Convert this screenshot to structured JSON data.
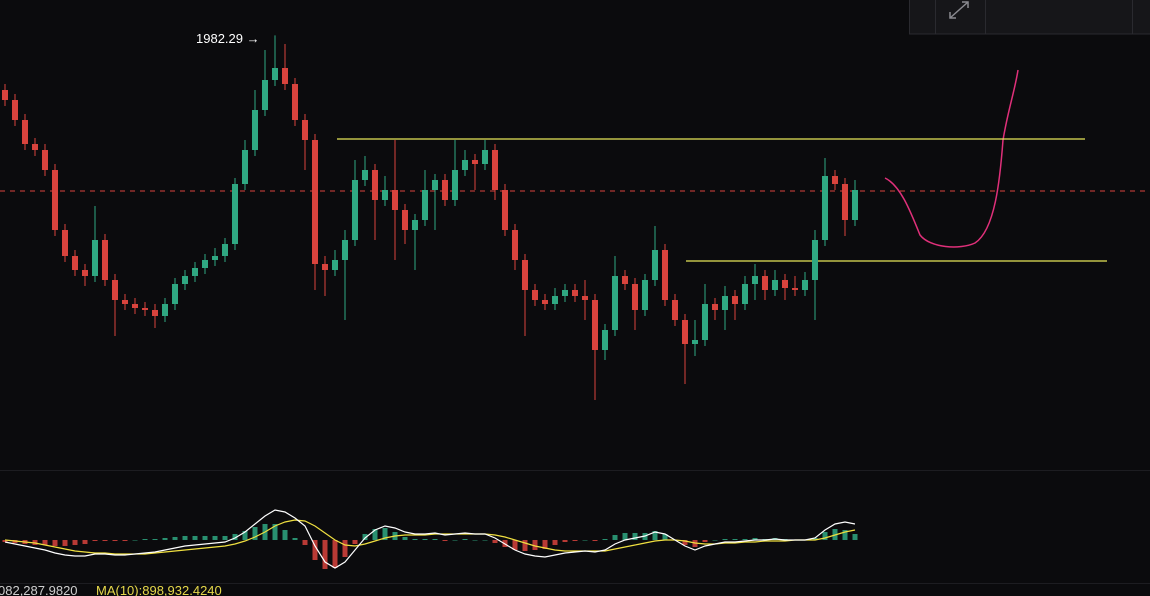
{
  "chart_data": {
    "type": "candlestick",
    "up_color": "#2fa882",
    "down_color": "#d8433d",
    "ylim": [
      1765,
      2000
    ],
    "high_label": "1982.29 →",
    "levels": [
      {
        "value": 1930.5,
        "color": "#e6e65a"
      },
      {
        "value": 1869.5,
        "color": "#e6e65a"
      }
    ],
    "current_price": {
      "value": 1904.5,
      "color": "#d8433d"
    },
    "candles": [
      [
        1955,
        1958,
        1947,
        1950
      ],
      [
        1950,
        1953,
        1937,
        1940
      ],
      [
        1940,
        1943,
        1925,
        1928
      ],
      [
        1928,
        1931,
        1922,
        1925
      ],
      [
        1925,
        1928,
        1912,
        1915
      ],
      [
        1915,
        1918,
        1882,
        1885
      ],
      [
        1885,
        1888,
        1869,
        1872
      ],
      [
        1872,
        1875,
        1862,
        1865
      ],
      [
        1865,
        1868,
        1857,
        1862
      ],
      [
        1862,
        1897,
        1859,
        1880
      ],
      [
        1880,
        1883,
        1857,
        1860
      ],
      [
        1860,
        1863,
        1832,
        1850
      ],
      [
        1850,
        1853,
        1845,
        1848
      ],
      [
        1848,
        1851,
        1843,
        1846
      ],
      [
        1846,
        1849,
        1842,
        1845
      ],
      [
        1845,
        1848,
        1836,
        1842
      ],
      [
        1842,
        1851,
        1839,
        1848
      ],
      [
        1848,
        1861,
        1845,
        1858
      ],
      [
        1858,
        1865,
        1855,
        1862
      ],
      [
        1862,
        1869,
        1859,
        1866
      ],
      [
        1866,
        1873,
        1863,
        1870
      ],
      [
        1870,
        1876,
        1867,
        1872
      ],
      [
        1872,
        1881,
        1869,
        1878
      ],
      [
        1878,
        1911,
        1875,
        1908
      ],
      [
        1908,
        1930,
        1905,
        1925
      ],
      [
        1925,
        1955,
        1922,
        1945
      ],
      [
        1945,
        1975,
        1942,
        1960
      ],
      [
        1960,
        1982.29,
        1957,
        1966
      ],
      [
        1966,
        1978,
        1955,
        1958
      ],
      [
        1958,
        1961,
        1937,
        1940
      ],
      [
        1940,
        1943,
        1915,
        1930
      ],
      [
        1930,
        1933,
        1855,
        1868
      ],
      [
        1868,
        1872,
        1852,
        1865
      ],
      [
        1865,
        1875,
        1862,
        1870
      ],
      [
        1870,
        1885,
        1840,
        1880
      ],
      [
        1880,
        1920,
        1877,
        1910
      ],
      [
        1910,
        1922,
        1907,
        1915
      ],
      [
        1915,
        1918,
        1880,
        1900
      ],
      [
        1900,
        1912,
        1897,
        1905
      ],
      [
        1905,
        1930,
        1870,
        1895
      ],
      [
        1895,
        1898,
        1878,
        1885
      ],
      [
        1885,
        1893,
        1865,
        1890
      ],
      [
        1890,
        1915,
        1887,
        1905
      ],
      [
        1905,
        1913,
        1885,
        1910
      ],
      [
        1910,
        1913,
        1897,
        1900
      ],
      [
        1900,
        1930,
        1897,
        1915
      ],
      [
        1915,
        1925,
        1912,
        1920
      ],
      [
        1920,
        1923,
        1905,
        1918
      ],
      [
        1918,
        1930,
        1915,
        1925
      ],
      [
        1925,
        1928,
        1900,
        1905
      ],
      [
        1905,
        1908,
        1882,
        1885
      ],
      [
        1885,
        1888,
        1865,
        1870
      ],
      [
        1870,
        1873,
        1832,
        1855
      ],
      [
        1855,
        1858,
        1847,
        1850
      ],
      [
        1850,
        1853,
        1845,
        1848
      ],
      [
        1848,
        1856,
        1845,
        1852
      ],
      [
        1852,
        1858,
        1849,
        1855
      ],
      [
        1855,
        1858,
        1849,
        1852
      ],
      [
        1852,
        1860,
        1840,
        1850
      ],
      [
        1850,
        1853,
        1800,
        1825
      ],
      [
        1825,
        1838,
        1820,
        1835
      ],
      [
        1835,
        1872,
        1832,
        1862
      ],
      [
        1862,
        1865,
        1855,
        1858
      ],
      [
        1858,
        1861,
        1835,
        1845
      ],
      [
        1845,
        1863,
        1842,
        1860
      ],
      [
        1860,
        1887,
        1857,
        1875
      ],
      [
        1875,
        1878,
        1847,
        1850
      ],
      [
        1850,
        1853,
        1837,
        1840
      ],
      [
        1840,
        1843,
        1808,
        1828
      ],
      [
        1828,
        1840,
        1822,
        1830
      ],
      [
        1830,
        1858,
        1827,
        1848
      ],
      [
        1848,
        1851,
        1840,
        1845
      ],
      [
        1845,
        1857,
        1835,
        1852
      ],
      [
        1852,
        1855,
        1840,
        1848
      ],
      [
        1848,
        1862,
        1845,
        1858
      ],
      [
        1858,
        1868,
        1850,
        1862
      ],
      [
        1862,
        1865,
        1850,
        1855
      ],
      [
        1855,
        1865,
        1852,
        1860
      ],
      [
        1860,
        1863,
        1850,
        1856
      ],
      [
        1856,
        1862,
        1852,
        1855
      ],
      [
        1855,
        1864,
        1852,
        1860
      ],
      [
        1860,
        1885,
        1840,
        1880
      ],
      [
        1880,
        1921,
        1877,
        1912
      ],
      [
        1912,
        1915,
        1905,
        1908
      ],
      [
        1908,
        1911,
        1882,
        1890
      ],
      [
        1890,
        1910,
        1887,
        1905
      ]
    ],
    "macd": {
      "ylim": [
        -43,
        70
      ],
      "hist": [
        -2,
        -3,
        -4,
        -5,
        -5,
        -6,
        -6,
        -5,
        -4,
        -1,
        -1,
        -1,
        -1,
        0,
        1,
        1,
        2,
        3,
        4,
        4,
        4,
        4,
        4,
        6,
        9,
        13,
        16,
        16,
        10,
        2,
        -5,
        -20,
        -29,
        -28,
        -17,
        -4,
        6,
        11,
        12,
        8,
        3,
        1,
        1,
        1,
        -1,
        0,
        1,
        0,
        0,
        -3,
        -7,
        -10,
        -11,
        -10,
        -9,
        -5,
        -2,
        -1,
        0,
        -1,
        1,
        5,
        7,
        7,
        7,
        9,
        6,
        0,
        -5,
        -7,
        -2,
        0,
        1,
        1,
        1,
        2,
        1,
        2,
        1,
        0,
        0,
        2,
        8,
        11,
        10,
        6
      ],
      "dif": {
        "color": "#ffffff",
        "values": [
          -2,
          -4,
          -6,
          -8,
          -10,
          -13,
          -15,
          -16,
          -16,
          -14,
          -14,
          -15,
          -15,
          -14,
          -13,
          -12,
          -10,
          -8,
          -6,
          -5,
          -4,
          -3,
          -2,
          2,
          8,
          16,
          24,
          30,
          28,
          22,
          14,
          -6,
          -22,
          -28,
          -22,
          -10,
          2,
          10,
          14,
          12,
          8,
          6,
          6,
          7,
          5,
          6,
          7,
          6,
          6,
          2,
          -4,
          -10,
          -14,
          -16,
          -17,
          -15,
          -13,
          -12,
          -11,
          -12,
          -10,
          -4,
          0,
          2,
          4,
          8,
          6,
          0,
          -6,
          -10,
          -6,
          -4,
          -2,
          -2,
          -1,
          0,
          0,
          1,
          0,
          0,
          0,
          2,
          10,
          16,
          18,
          16
        ]
      },
      "dea": {
        "color": "#f0e040",
        "values": [
          0,
          -1,
          -2,
          -3,
          -5,
          -7,
          -9,
          -11,
          -12,
          -13,
          -13,
          -14,
          -14,
          -14,
          -14,
          -13,
          -12,
          -11,
          -10,
          -9,
          -8,
          -7,
          -6,
          -4,
          -1,
          3,
          8,
          14,
          18,
          20,
          19,
          14,
          7,
          0,
          -5,
          -6,
          -4,
          -1,
          2,
          4,
          5,
          5,
          5,
          6,
          6,
          6,
          6,
          6,
          6,
          5,
          3,
          0,
          -3,
          -6,
          -8,
          -10,
          -11,
          -11,
          -11,
          -11,
          -11,
          -9,
          -7,
          -5,
          -3,
          -1,
          0,
          0,
          -1,
          -3,
          -4,
          -4,
          -3,
          -3,
          -2,
          -2,
          -1,
          -1,
          -1,
          0,
          0,
          0,
          2,
          5,
          8,
          10
        ]
      }
    },
    "footer_texts": [
      "082,287.9820",
      "MA(10):898,932.4240"
    ]
  }
}
